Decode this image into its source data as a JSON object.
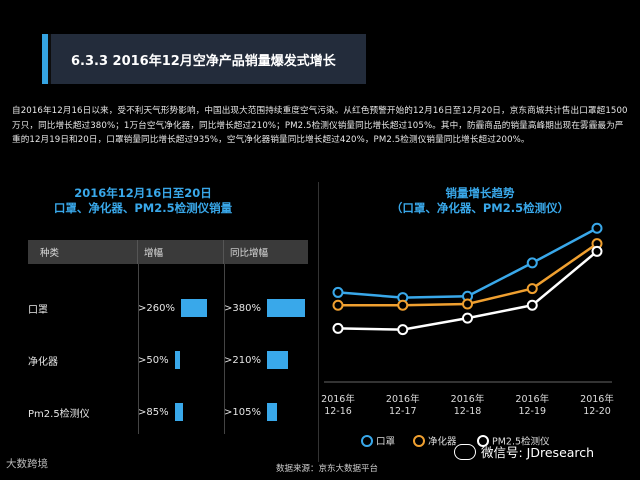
{
  "title": "6.3.3 2016年12月空净产品销量爆发式增长",
  "intro": "自2016年12月16日以来，受不利天气形势影响，中国出现大范围持续重度空气污染。从红色预警开始的12月16日至12月20日，京东商城共计售出口罩超1500万只，同比增长超过380%；1万台空气净化器，同比增长超过210%；PM2.5检测仪销量同比增长超过105%。其中，防霾商品的销量高峰期出现在雾霾最为严重的12月19日和20日，口罩销量同比增长超过935%，空气净化器销量同比增长超过420%，PM2.5检测仪销量同比增长超过200%。",
  "left_heading_line1": "2016年12月16日至20日",
  "left_heading_line2": "口罩、净化器、PM2.5检测仪销量",
  "right_heading_line1": "销量增长趋势",
  "right_heading_line2": "（口罩、净化器、PM2.5检测仪）",
  "table": {
    "headers": [
      "种类",
      "增幅",
      "同比增幅"
    ],
    "rows": [
      {
        "name": "口罩",
        "increase": ">260%",
        "increase_value": 260,
        "yoy": ">380%",
        "yoy_value": 380
      },
      {
        "name": "净化器",
        "increase": ">50%",
        "increase_value": 50,
        "yoy": ">210%",
        "yoy_value": 210
      },
      {
        "name": "Pm2.5检测仪",
        "increase": ">85%",
        "increase_value": 85,
        "yoy": ">105%",
        "yoy_value": 105
      }
    ]
  },
  "chart_data": {
    "type": "line",
    "title": "销量增长趋势",
    "categories": [
      "2016年 12-16",
      "2016年 12-17",
      "2016年 12-18",
      "2016年 12-19",
      "2016年 12-20"
    ],
    "category_lines": [
      [
        "2016年",
        "12-16"
      ],
      [
        "2016年",
        "12-17"
      ],
      [
        "2016年",
        "12-18"
      ],
      [
        "2016年",
        "12-19"
      ],
      [
        "2016年",
        "12-20"
      ]
    ],
    "series": [
      {
        "name": "口罩",
        "color": "#39a8ea",
        "values": [
          62,
          58,
          59,
          85,
          112
        ]
      },
      {
        "name": "净化器",
        "color": "#f0a030",
        "values": [
          52,
          52,
          53,
          65,
          100
        ]
      },
      {
        "name": "PM2.5检测仪",
        "color": "#ffffff",
        "values": [
          34,
          33,
          42,
          52,
          94
        ]
      }
    ],
    "ylim": [
      0,
      120
    ],
    "legend_position": "bottom"
  },
  "source": "数据来源：京东大数据平台",
  "logo": "大数跨境",
  "watermark": "微信号: JDresearch"
}
